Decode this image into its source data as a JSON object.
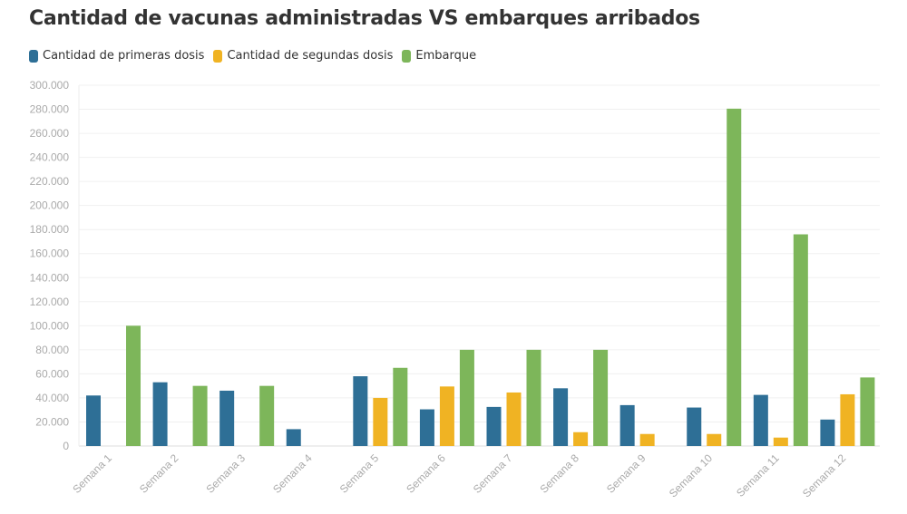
{
  "chart_data": {
    "type": "bar",
    "title": "Cantidad de vacunas administradas VS embarques arribados",
    "xlabel": "",
    "ylabel": "",
    "ylim": [
      0,
      300000
    ],
    "yticks": [
      "0",
      "20.000",
      "40.000",
      "60.000",
      "80.000",
      "100.000",
      "120.000",
      "140.000",
      "160.000",
      "180.000",
      "200.000",
      "220.000",
      "240.000",
      "260.000",
      "280.000",
      "300.000"
    ],
    "grid": true,
    "legend_position": "top-left",
    "categories": [
      "Semana 1",
      "Semana 2",
      "Semana 3",
      "Semana 4",
      "Semana 5",
      "Semana 6",
      "Semana 7",
      "Semana 8",
      "Semana 9",
      "Semana 10",
      "Semana 11",
      "Semana 12"
    ],
    "series": [
      {
        "name": "Cantidad de primeras dosis",
        "color": "#2e6f96",
        "values": [
          42000,
          53000,
          46000,
          14000,
          58000,
          30500,
          32500,
          48000,
          34000,
          32000,
          42500,
          22000
        ]
      },
      {
        "name": "Cantidad de segundas dosis",
        "color": "#f0b323",
        "values": [
          null,
          null,
          null,
          null,
          40000,
          49500,
          44500,
          11500,
          10000,
          10000,
          7000,
          43000
        ]
      },
      {
        "name": "Embarque",
        "color": "#7db65a",
        "values": [
          100000,
          50000,
          50000,
          null,
          65000,
          80000,
          80000,
          80000,
          null,
          280500,
          176000,
          57000
        ]
      }
    ]
  }
}
